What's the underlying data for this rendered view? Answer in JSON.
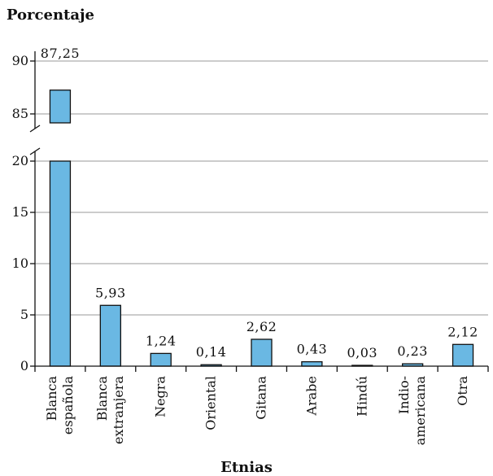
{
  "chart_data": {
    "type": "bar",
    "title": "Porcentaje",
    "xlabel": "Etnias",
    "ylabel": "",
    "axis_break": true,
    "ylim_lower": [
      0,
      20
    ],
    "ylim_upper": [
      85,
      90
    ],
    "yticks_lower": [
      "0",
      "5",
      "10",
      "15",
      "20"
    ],
    "yticks_upper": [
      "85",
      "90"
    ],
    "grid": true,
    "categories": [
      [
        "Blanca",
        "española"
      ],
      [
        "Blanca",
        "extranjera"
      ],
      [
        "Negra"
      ],
      [
        "Oriental"
      ],
      [
        "Gitana"
      ],
      [
        "Arabe"
      ],
      [
        "Hindú"
      ],
      [
        "Indio-",
        "americana"
      ],
      [
        "Otra"
      ]
    ],
    "values": [
      87.25,
      5.93,
      1.24,
      0.14,
      2.62,
      0.43,
      0.03,
      0.23,
      2.12
    ],
    "data_labels": [
      "87,25",
      "5,93",
      "1,24",
      "0,14",
      "2,62",
      "0,43",
      "0,03",
      "0,23",
      "2,12"
    ],
    "bar_color": "#6ab8e3"
  }
}
